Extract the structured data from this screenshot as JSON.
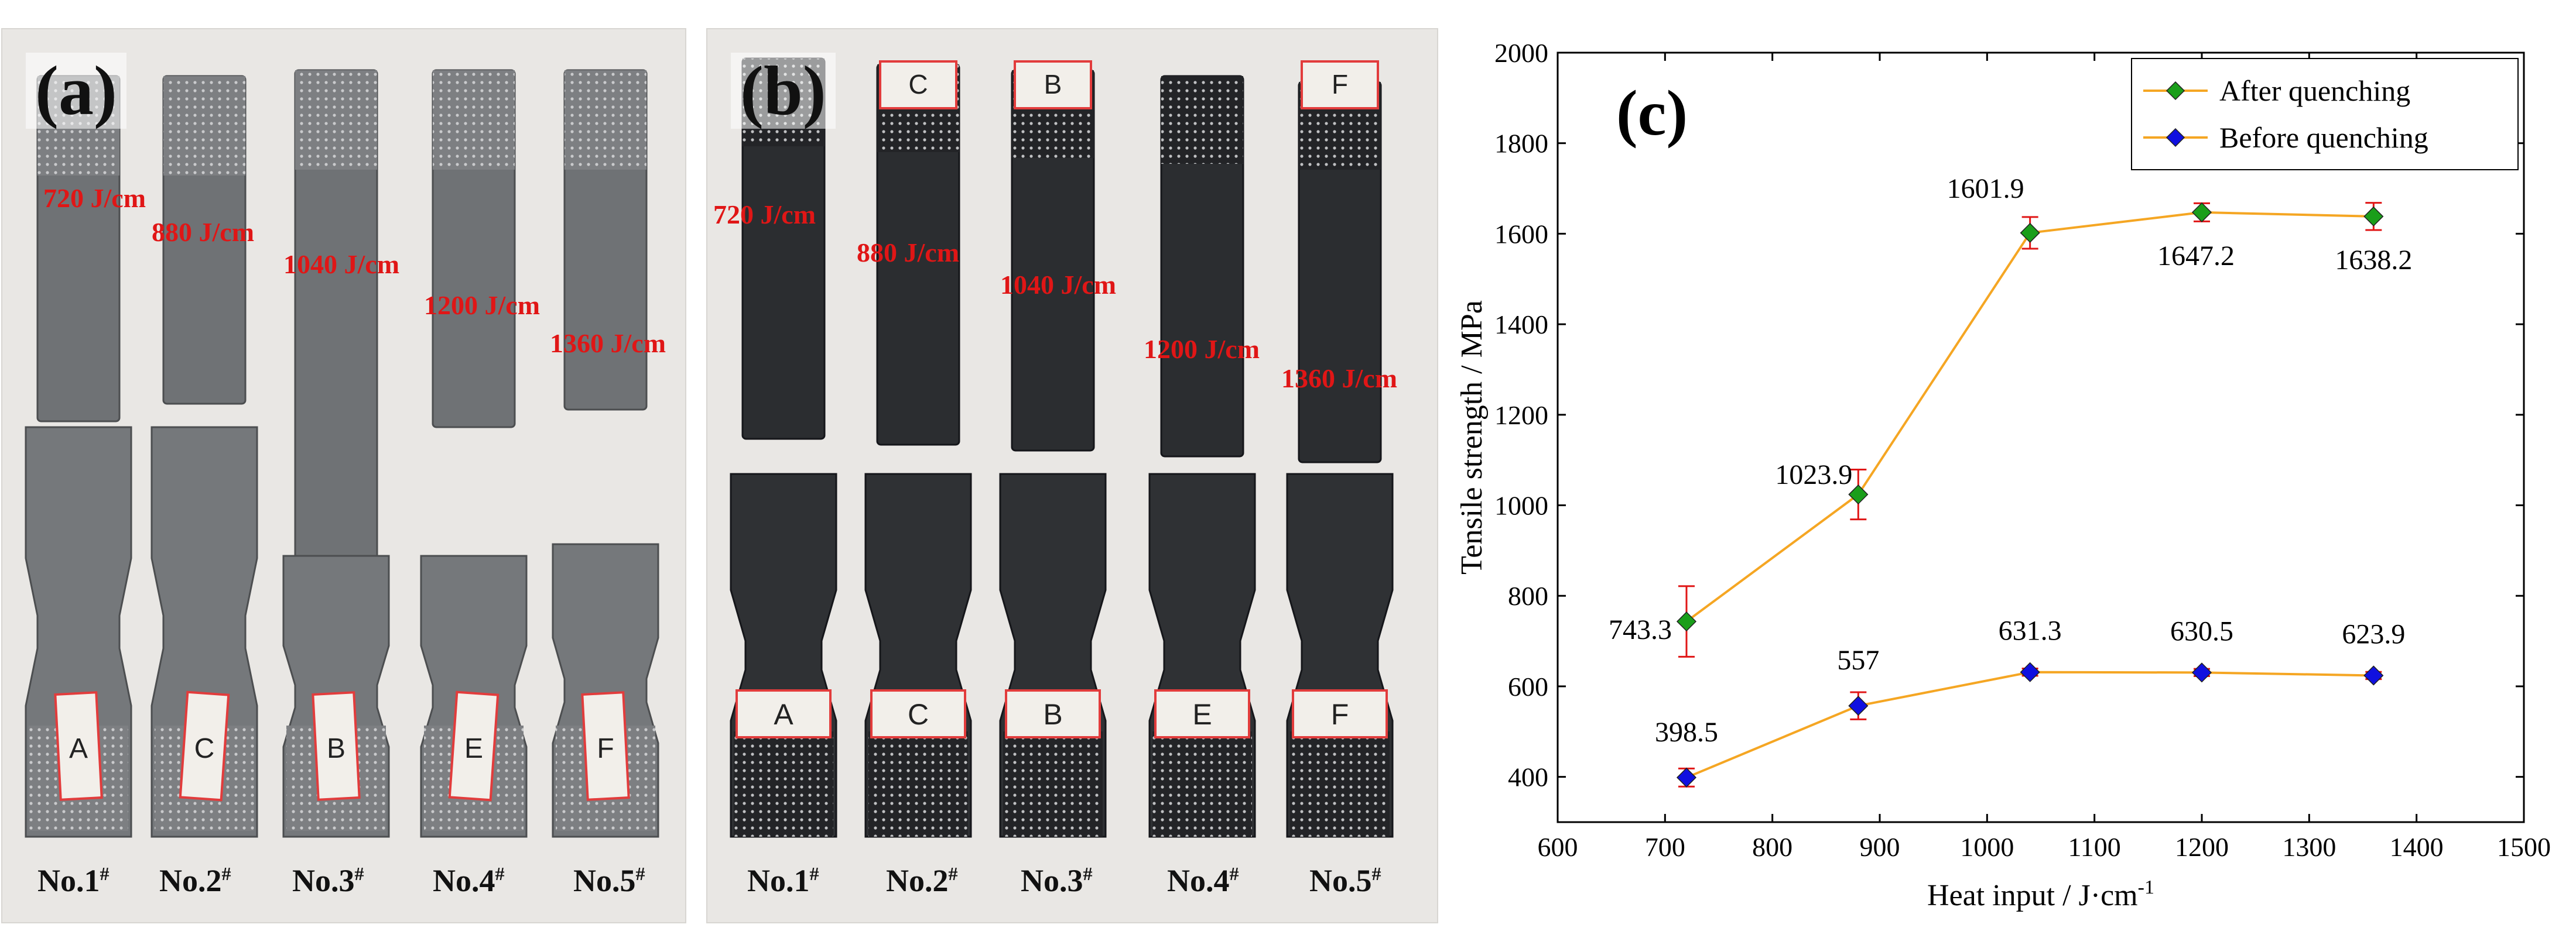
{
  "panel_a": {
    "letter": "(a)",
    "heat_labels": [
      "720 J/cm",
      "880 J/cm",
      "1040 J/cm",
      "1200 J/cm",
      "1360 J/cm"
    ],
    "specimen_marks": [
      "A",
      "C",
      "B",
      "E",
      "F"
    ],
    "numbers": [
      "No.1",
      "No.2",
      "No.3",
      "No.4",
      "No.5"
    ],
    "number_suffix": "#"
  },
  "panel_b": {
    "letter": "(b)",
    "heat_labels": [
      "720 J/cm",
      "880 J/cm",
      "1040 J/cm",
      "1200 J/cm",
      "1360 J/cm"
    ],
    "top_marks": [
      "C",
      "B",
      "F"
    ],
    "specimen_marks": [
      "A",
      "C",
      "B",
      "E",
      "F"
    ],
    "numbers": [
      "No.1",
      "No.2",
      "No.3",
      "No.4",
      "No.5"
    ],
    "number_suffix": "#"
  },
  "chart_data": {
    "type": "line",
    "panel_letter": "(c)",
    "xlabel": "Heat input / J·cm",
    "xlabel_sup": "-1",
    "ylabel": "Tensile strength / MPa",
    "xlim": [
      600,
      1500
    ],
    "ylim": [
      300,
      2000
    ],
    "xticks": [
      600,
      700,
      800,
      900,
      1000,
      1100,
      1200,
      1300,
      1400,
      1500
    ],
    "yticks": [
      400,
      600,
      800,
      1000,
      1200,
      1400,
      1600,
      1800,
      2000
    ],
    "legend_position": "top-right",
    "x": [
      720,
      880,
      1040,
      1200,
      1360
    ],
    "series": [
      {
        "name": "After quenching",
        "values": [
          743.3,
          1023.9,
          1601.9,
          1647.2,
          1638.2
        ],
        "labels": [
          "743.3",
          "1023.9",
          "1601.9",
          "1647.2",
          "1638.2"
        ],
        "errors": [
          78,
          55,
          35,
          20,
          30
        ],
        "line_color": "#f5a623",
        "marker_color": "#1a9e1a"
      },
      {
        "name": "Before quenching",
        "values": [
          398.5,
          557,
          631.3,
          630.5,
          623.9
        ],
        "labels": [
          "398.5",
          "557",
          "631.3",
          "630.5",
          "623.9"
        ],
        "errors": [
          20,
          30,
          8,
          8,
          8
        ],
        "line_color": "#f5a623",
        "marker_color": "#1010e0"
      }
    ],
    "error_bar_color": "#e01616"
  }
}
